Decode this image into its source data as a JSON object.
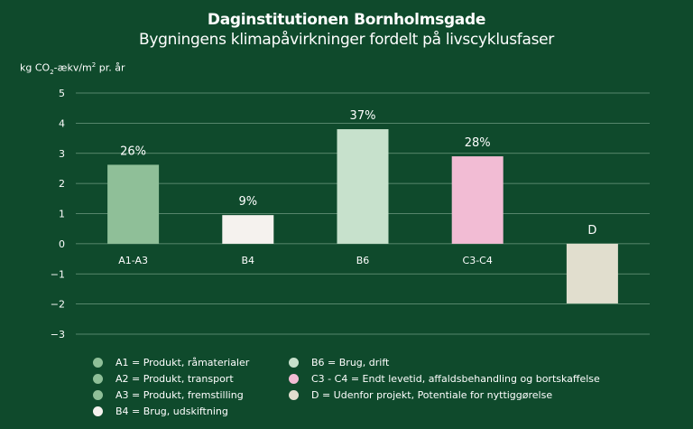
{
  "chart_data": {
    "type": "bar",
    "title": "Daginstitutionen Bornholmsgade",
    "subtitle": "Bygningens klimapåvirkninger fordelt på livscyklusfaser",
    "ylabel": {
      "prefix": "kg CO",
      "sub": "2",
      "mid": "-ækv/m",
      "sup": "2",
      "suffix": " pr. år"
    },
    "ylim": [
      -3,
      5
    ],
    "yticks": [
      "5",
      "4",
      "3",
      "2",
      "1",
      "0",
      "−1",
      "−2",
      "−3"
    ],
    "yticks_values": [
      5,
      4,
      3,
      2,
      1,
      0,
      -1,
      -2,
      -3
    ],
    "grid": true,
    "categories": [
      "A1-A3",
      "B4",
      "B6",
      "C3-C4",
      "D"
    ],
    "values": [
      2.62,
      0.95,
      3.8,
      2.9,
      -1.98
    ],
    "data_labels": [
      "26%",
      "9%",
      "37%",
      "28%",
      "D"
    ],
    "colors": [
      "#8fbf98",
      "#f5f2ee",
      "#c7e1cc",
      "#f2bcd4",
      "#e1dece"
    ]
  },
  "legend": {
    "left": [
      {
        "label": "A1 = Produkt, råmaterialer",
        "color": "#8fbf98"
      },
      {
        "label": "A2 = Produkt, transport",
        "color": "#8fbf98"
      },
      {
        "label": "A3 = Produkt, fremstilling",
        "color": "#8fbf98"
      },
      {
        "label": "B4 = Brug, udskiftning",
        "color": "#f5f2ee"
      }
    ],
    "right": [
      {
        "label": "B6 = Brug, drift",
        "color": "#c7e1cc"
      },
      {
        "label": "C3 - C4 = Endt levetid, affaldsbehandling og bortskaffelse",
        "color": "#f2bcd4"
      },
      {
        "label": "D = Udenfor projekt, Potentiale for nyttiggørelse",
        "color": "#e1dece"
      }
    ]
  }
}
